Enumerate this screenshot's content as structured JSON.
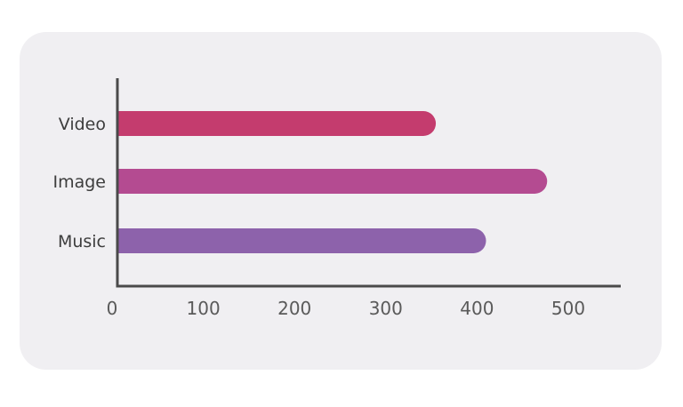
{
  "chart_data": {
    "type": "bar",
    "orientation": "horizontal",
    "categories": [
      "Video",
      "Image",
      "Music"
    ],
    "values": [
      349,
      471,
      404
    ],
    "colors": [
      "#c43c6e",
      "#b44b91",
      "#8d62ab"
    ],
    "xlim": [
      0,
      550
    ],
    "xticks": [
      "0",
      "100",
      "200",
      "300",
      "400",
      "500"
    ],
    "grid": false,
    "title": "",
    "xlabel": "",
    "ylabel": ""
  },
  "style": {
    "card_background": "#f0eff2",
    "axis_color": "#4a4a4a"
  }
}
